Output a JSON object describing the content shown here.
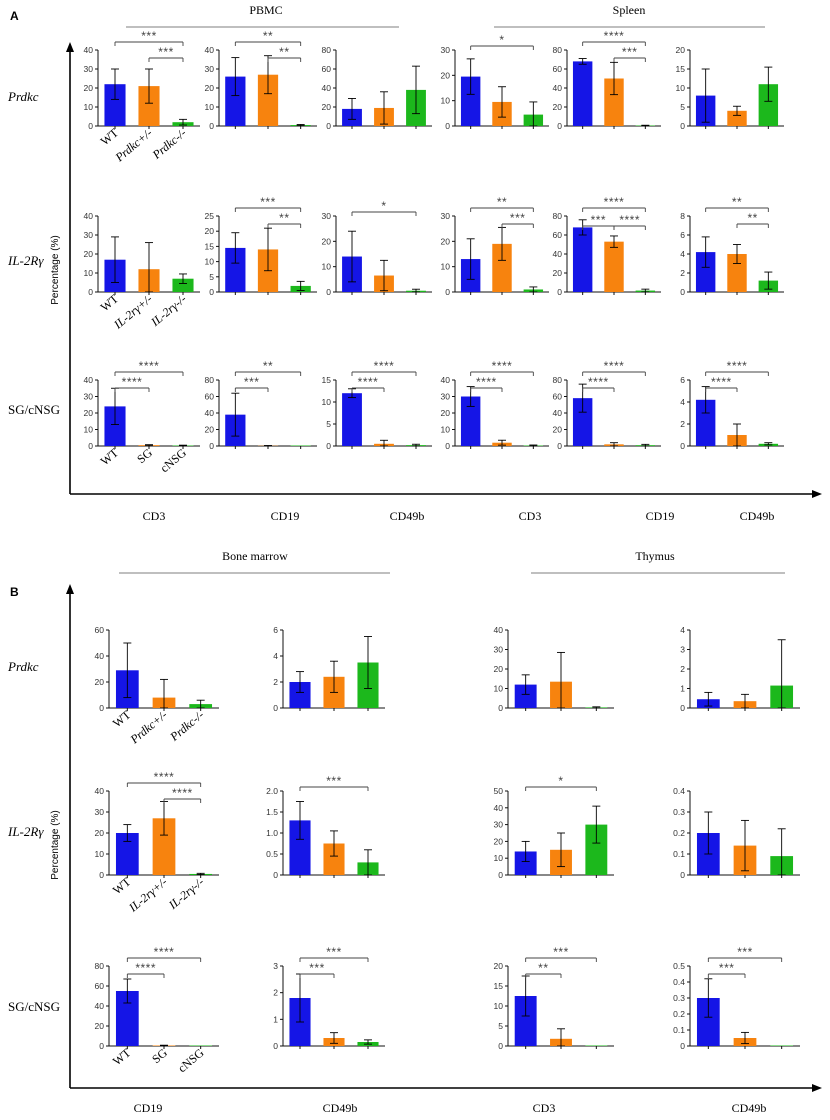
{
  "panels": [
    {
      "id": "A",
      "y_label": "Percentage (%)",
      "groups": [
        {
          "title": "PBMC"
        },
        {
          "title": "Spleen"
        }
      ],
      "bottom_labels": [
        "CD3",
        "CD19",
        "CD49b",
        "CD3",
        "CD19",
        "CD49b"
      ],
      "rows": [
        {
          "label": "Prdkc",
          "italic": true,
          "categories": [
            "WT",
            "Prdkc+/-",
            "Prdkc-/-"
          ]
        },
        {
          "label": "IL-2Rγ",
          "italic": true,
          "categories": [
            "WT",
            "IL-2rγ+/-",
            "IL-2rγ-/-"
          ]
        },
        {
          "label": "SG/cNSG",
          "italic": false,
          "categories": [
            "WT",
            "SG",
            "cNSG"
          ]
        }
      ]
    },
    {
      "id": "B",
      "y_label": "Percentage (%)",
      "groups": [
        {
          "title": "Bone marrow"
        },
        {
          "title": "Thymus"
        }
      ],
      "bottom_labels": [
        "CD19",
        "CD49b",
        "CD3",
        "CD49b"
      ],
      "rows": [
        {
          "label": "Prdkc",
          "italic": true,
          "categories": [
            "WT",
            "Prdkc+/-",
            "Prdkc-/-"
          ]
        },
        {
          "label": "IL-2Rγ",
          "italic": true,
          "categories": [
            "WT",
            "IL-2rγ+/-",
            "IL-2rγ-/-"
          ]
        },
        {
          "label": "SG/cNSG",
          "italic": false,
          "categories": [
            "WT",
            "SG",
            "cNSG"
          ]
        }
      ]
    }
  ],
  "colors": [
    "#1515e6",
    "#f7830e",
    "#1cb81c"
  ],
  "chart_data": [
    {
      "type": "bar",
      "panel": "A",
      "row": "Prdkc",
      "marker": "CD3",
      "tissue": "PBMC",
      "ylim": [
        0,
        40
      ],
      "yticks": [
        0,
        10,
        20,
        30,
        40
      ],
      "values": [
        22,
        21,
        2
      ],
      "errors": [
        8,
        9,
        1.5
      ],
      "significance": [
        {
          "from": 0,
          "to": 2,
          "label": "***"
        },
        {
          "from": 1,
          "to": 2,
          "label": "***"
        }
      ]
    },
    {
      "type": "bar",
      "panel": "A",
      "row": "Prdkc",
      "marker": "CD19",
      "tissue": "PBMC",
      "ylim": [
        0,
        40
      ],
      "yticks": [
        0,
        10,
        20,
        30,
        40
      ],
      "values": [
        26,
        27,
        0.5
      ],
      "errors": [
        10,
        10,
        0.3
      ],
      "significance": [
        {
          "from": 0,
          "to": 2,
          "label": "**"
        },
        {
          "from": 1,
          "to": 2,
          "label": "**"
        }
      ]
    },
    {
      "type": "bar",
      "panel": "A",
      "row": "Prdkc",
      "marker": "CD49b",
      "tissue": "PBMC",
      "ylim": [
        0,
        80
      ],
      "yticks": [
        0,
        20,
        40,
        60,
        80
      ],
      "values": [
        18,
        19,
        38
      ],
      "errors": [
        11,
        17,
        25
      ],
      "significance": []
    },
    {
      "type": "bar",
      "panel": "A",
      "row": "Prdkc",
      "marker": "CD3",
      "tissue": "Spleen",
      "ylim": [
        0,
        30
      ],
      "yticks": [
        0,
        10,
        20,
        30
      ],
      "values": [
        19.5,
        9.5,
        4.5
      ],
      "errors": [
        7,
        6,
        5
      ],
      "significance": [
        {
          "from": 0,
          "to": 2,
          "label": "*"
        }
      ]
    },
    {
      "type": "bar",
      "panel": "A",
      "row": "Prdkc",
      "marker": "CD19",
      "tissue": "Spleen",
      "ylim": [
        0,
        80
      ],
      "yticks": [
        0,
        20,
        40,
        60,
        80
      ],
      "values": [
        68,
        50,
        0.5
      ],
      "errors": [
        3,
        17,
        0.3
      ],
      "significance": [
        {
          "from": 0,
          "to": 2,
          "label": "****"
        },
        {
          "from": 1,
          "to": 2,
          "label": "***"
        }
      ]
    },
    {
      "type": "bar",
      "panel": "A",
      "row": "Prdkc",
      "marker": "CD49b",
      "tissue": "Spleen",
      "ylim": [
        0,
        20
      ],
      "yticks": [
        0,
        5,
        10,
        15,
        20
      ],
      "values": [
        8,
        4,
        11
      ],
      "errors": [
        7,
        1.2,
        4.5
      ],
      "significance": []
    },
    {
      "type": "bar",
      "panel": "A",
      "row": "IL-2Rγ",
      "marker": "CD3",
      "tissue": "PBMC",
      "ylim": [
        0,
        40
      ],
      "yticks": [
        0,
        10,
        20,
        30,
        40
      ],
      "values": [
        17,
        12,
        7
      ],
      "errors": [
        12,
        14,
        2.5
      ],
      "significance": []
    },
    {
      "type": "bar",
      "panel": "A",
      "row": "IL-2Rγ",
      "marker": "CD19",
      "tissue": "PBMC",
      "ylim": [
        0,
        25
      ],
      "yticks": [
        0,
        5,
        10,
        15,
        20,
        25
      ],
      "values": [
        14.5,
        14,
        2
      ],
      "errors": [
        5,
        7,
        1.5
      ],
      "significance": [
        {
          "from": 0,
          "to": 2,
          "label": "***"
        },
        {
          "from": 1,
          "to": 2,
          "label": "**"
        }
      ]
    },
    {
      "type": "bar",
      "panel": "A",
      "row": "IL-2Rγ",
      "marker": "CD49b",
      "tissue": "PBMC",
      "ylim": [
        0,
        30
      ],
      "yticks": [
        0,
        10,
        20,
        30
      ],
      "values": [
        14,
        6.5,
        0.5
      ],
      "errors": [
        10,
        6,
        0.6
      ],
      "significance": [
        {
          "from": 0,
          "to": 2,
          "label": "*"
        }
      ]
    },
    {
      "type": "bar",
      "panel": "A",
      "row": "IL-2Rγ",
      "marker": "CD3",
      "tissue": "Spleen",
      "ylim": [
        0,
        30
      ],
      "yticks": [
        0,
        10,
        20,
        30
      ],
      "values": [
        13,
        19,
        1
      ],
      "errors": [
        8,
        6.5,
        1
      ],
      "significance": [
        {
          "from": 0,
          "to": 2,
          "label": "**"
        },
        {
          "from": 1,
          "to": 2,
          "label": "***"
        }
      ]
    },
    {
      "type": "bar",
      "panel": "A",
      "row": "IL-2Rγ",
      "marker": "CD19",
      "tissue": "Spleen",
      "ylim": [
        0,
        80
      ],
      "yticks": [
        0,
        20,
        40,
        60,
        80
      ],
      "values": [
        68,
        53,
        1.5
      ],
      "errors": [
        8,
        6,
        1.5
      ],
      "significance": [
        {
          "from": 0,
          "to": 1,
          "label": "***"
        },
        {
          "from": 0,
          "to": 2,
          "label": "****"
        },
        {
          "from": 1,
          "to": 2,
          "label": "****"
        }
      ]
    },
    {
      "type": "bar",
      "panel": "A",
      "row": "IL-2Rγ",
      "marker": "CD49b",
      "tissue": "Spleen",
      "ylim": [
        0,
        8
      ],
      "yticks": [
        0,
        2,
        4,
        6,
        8
      ],
      "values": [
        4.2,
        4,
        1.2
      ],
      "errors": [
        1.6,
        1,
        0.9
      ],
      "significance": [
        {
          "from": 0,
          "to": 2,
          "label": "**"
        },
        {
          "from": 1,
          "to": 2,
          "label": "**"
        }
      ]
    },
    {
      "type": "bar",
      "panel": "A",
      "row": "SG/cNSG",
      "marker": "CD3",
      "tissue": "PBMC",
      "ylim": [
        0,
        40
      ],
      "yticks": [
        0,
        10,
        20,
        30,
        40
      ],
      "values": [
        24,
        0.5,
        0.3
      ],
      "errors": [
        11,
        0.3,
        0.2
      ],
      "significance": [
        {
          "from": 0,
          "to": 1,
          "label": "****"
        },
        {
          "from": 0,
          "to": 2,
          "label": "****"
        }
      ]
    },
    {
      "type": "bar",
      "panel": "A",
      "row": "SG/cNSG",
      "marker": "CD19",
      "tissue": "PBMC",
      "ylim": [
        0,
        80
      ],
      "yticks": [
        0,
        20,
        40,
        60,
        80
      ],
      "values": [
        38,
        0.3,
        0
      ],
      "errors": [
        26,
        0.3,
        0
      ],
      "significance": [
        {
          "from": 0,
          "to": 1,
          "label": "***"
        },
        {
          "from": 0,
          "to": 2,
          "label": "**"
        }
      ]
    },
    {
      "type": "bar",
      "panel": "A",
      "row": "SG/cNSG",
      "marker": "CD49b",
      "tissue": "PBMC",
      "ylim": [
        0,
        15
      ],
      "yticks": [
        0,
        5,
        10,
        15
      ],
      "values": [
        12,
        0.5,
        0.2
      ],
      "errors": [
        1,
        0.8,
        0.2
      ],
      "significance": [
        {
          "from": 0,
          "to": 1,
          "label": "****"
        },
        {
          "from": 0,
          "to": 2,
          "label": "****"
        }
      ]
    },
    {
      "type": "bar",
      "panel": "A",
      "row": "SG/cNSG",
      "marker": "CD3",
      "tissue": "Spleen",
      "ylim": [
        0,
        40
      ],
      "yticks": [
        0,
        10,
        20,
        30,
        40
      ],
      "values": [
        30,
        2,
        0.3
      ],
      "errors": [
        6,
        1.5,
        0.3
      ],
      "significance": [
        {
          "from": 0,
          "to": 1,
          "label": "****"
        },
        {
          "from": 0,
          "to": 2,
          "label": "****"
        }
      ]
    },
    {
      "type": "bar",
      "panel": "A",
      "row": "SG/cNSG",
      "marker": "CD19",
      "tissue": "Spleen",
      "ylim": [
        0,
        80
      ],
      "yticks": [
        0,
        20,
        40,
        60,
        80
      ],
      "values": [
        58,
        2,
        1
      ],
      "errors": [
        17,
        2,
        1
      ],
      "significance": [
        {
          "from": 0,
          "to": 1,
          "label": "****"
        },
        {
          "from": 0,
          "to": 2,
          "label": "****"
        }
      ]
    },
    {
      "type": "bar",
      "panel": "A",
      "row": "SG/cNSG",
      "marker": "CD49b",
      "tissue": "Spleen",
      "ylim": [
        0,
        6
      ],
      "yticks": [
        0,
        2,
        4,
        6
      ],
      "values": [
        4.2,
        1,
        0.2
      ],
      "errors": [
        1.2,
        1,
        0.1
      ],
      "significance": [
        {
          "from": 0,
          "to": 1,
          "label": "****"
        },
        {
          "from": 0,
          "to": 2,
          "label": "****"
        }
      ]
    },
    {
      "type": "bar",
      "panel": "B",
      "row": "Prdkc",
      "marker": "CD19",
      "tissue": "Bone marrow",
      "ylim": [
        0,
        60
      ],
      "yticks": [
        0,
        20,
        40,
        60
      ],
      "values": [
        29,
        8,
        3
      ],
      "errors": [
        21,
        14,
        3
      ],
      "significance": []
    },
    {
      "type": "bar",
      "panel": "B",
      "row": "Prdkc",
      "marker": "CD49b",
      "tissue": "Bone marrow",
      "ylim": [
        0,
        6
      ],
      "yticks": [
        0,
        2,
        4,
        6
      ],
      "values": [
        2,
        2.4,
        3.5
      ],
      "errors": [
        0.8,
        1.2,
        2
      ],
      "significance": []
    },
    {
      "type": "bar",
      "panel": "B",
      "row": "Prdkc",
      "marker": "CD3",
      "tissue": "Thymus",
      "ylim": [
        0,
        40
      ],
      "yticks": [
        0,
        10,
        20,
        30,
        40
      ],
      "values": [
        12,
        13.5,
        0.3
      ],
      "errors": [
        5,
        15,
        0.3
      ],
      "significance": []
    },
    {
      "type": "bar",
      "panel": "B",
      "row": "Prdkc",
      "marker": "CD49b",
      "tissue": "Thymus",
      "ylim": [
        0,
        4
      ],
      "yticks": [
        0,
        1,
        2,
        3,
        4
      ],
      "values": [
        0.45,
        0.35,
        1.15
      ],
      "errors": [
        0.35,
        0.35,
        2.35
      ],
      "significance": []
    },
    {
      "type": "bar",
      "panel": "B",
      "row": "IL-2Rγ",
      "marker": "CD19",
      "tissue": "Bone marrow",
      "ylim": [
        0,
        40
      ],
      "yticks": [
        0,
        10,
        20,
        30,
        40
      ],
      "values": [
        20,
        27,
        0.5
      ],
      "errors": [
        4,
        8,
        0.3
      ],
      "significance": [
        {
          "from": 0,
          "to": 2,
          "label": "****"
        },
        {
          "from": 1,
          "to": 2,
          "label": "****"
        }
      ]
    },
    {
      "type": "bar",
      "panel": "B",
      "row": "IL-2Rγ",
      "marker": "CD49b",
      "tissue": "Bone marrow",
      "ylim": [
        0,
        2
      ],
      "yticks": [
        0,
        0.5,
        1.0,
        1.5,
        2.0
      ],
      "values": [
        1.3,
        0.75,
        0.3
      ],
      "errors": [
        0.45,
        0.3,
        0.3
      ],
      "significance": [
        {
          "from": 0,
          "to": 2,
          "label": "***"
        }
      ]
    },
    {
      "type": "bar",
      "panel": "B",
      "row": "IL-2Rγ",
      "marker": "CD3",
      "tissue": "Thymus",
      "ylim": [
        0,
        50
      ],
      "yticks": [
        0,
        10,
        20,
        30,
        40,
        50
      ],
      "values": [
        14,
        15,
        30
      ],
      "errors": [
        6,
        10,
        11
      ],
      "significance": [
        {
          "from": 0,
          "to": 2,
          "label": "*"
        }
      ]
    },
    {
      "type": "bar",
      "panel": "B",
      "row": "IL-2Rγ",
      "marker": "CD49b",
      "tissue": "Thymus",
      "ylim": [
        0,
        0.4
      ],
      "yticks": [
        0,
        0.1,
        0.2,
        0.3,
        0.4
      ],
      "values": [
        0.2,
        0.14,
        0.09
      ],
      "errors": [
        0.1,
        0.12,
        0.13
      ],
      "significance": []
    },
    {
      "type": "bar",
      "panel": "B",
      "row": "SG/cNSG",
      "marker": "CD19",
      "tissue": "Bone marrow",
      "ylim": [
        0,
        80
      ],
      "yticks": [
        0,
        20,
        40,
        60,
        80
      ],
      "values": [
        55,
        0.5,
        0
      ],
      "errors": [
        12,
        0.3,
        0
      ],
      "significance": [
        {
          "from": 0,
          "to": 1,
          "label": "****"
        },
        {
          "from": 0,
          "to": 2,
          "label": "****"
        }
      ]
    },
    {
      "type": "bar",
      "panel": "B",
      "row": "SG/cNSG",
      "marker": "CD49b",
      "tissue": "Bone marrow",
      "ylim": [
        0,
        3
      ],
      "yticks": [
        0,
        1,
        2,
        3
      ],
      "values": [
        1.8,
        0.3,
        0.15
      ],
      "errors": [
        0.9,
        0.2,
        0.08
      ],
      "significance": [
        {
          "from": 0,
          "to": 1,
          "label": "***"
        },
        {
          "from": 0,
          "to": 2,
          "label": "***"
        }
      ]
    },
    {
      "type": "bar",
      "panel": "B",
      "row": "SG/cNSG",
      "marker": "CD3",
      "tissue": "Thymus",
      "ylim": [
        0,
        20
      ],
      "yticks": [
        0,
        5,
        10,
        15,
        20
      ],
      "values": [
        12.5,
        1.8,
        0
      ],
      "errors": [
        5,
        2.5,
        0
      ],
      "significance": [
        {
          "from": 0,
          "to": 1,
          "label": "**"
        },
        {
          "from": 0,
          "to": 2,
          "label": "***"
        }
      ]
    },
    {
      "type": "bar",
      "panel": "B",
      "row": "SG/cNSG",
      "marker": "CD49b",
      "tissue": "Thymus",
      "ylim": [
        0,
        0.5
      ],
      "yticks": [
        0,
        0.1,
        0.2,
        0.3,
        0.4,
        0.5
      ],
      "values": [
        0.3,
        0.05,
        0
      ],
      "errors": [
        0.12,
        0.035,
        0
      ],
      "significance": [
        {
          "from": 0,
          "to": 1,
          "label": "***"
        },
        {
          "from": 0,
          "to": 2,
          "label": "***"
        }
      ]
    }
  ]
}
